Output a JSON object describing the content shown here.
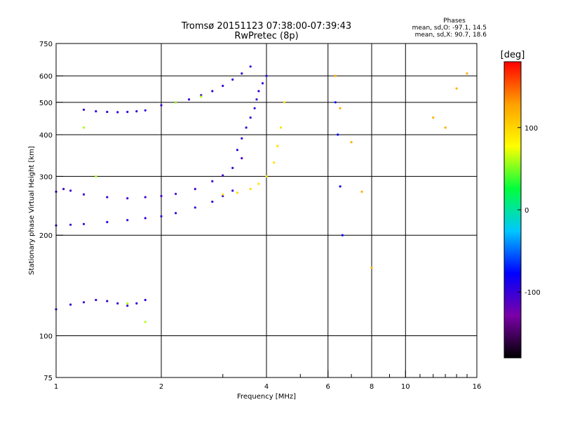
{
  "title": "Tromsø 20151123 07:38:00-07:39:43",
  "subtitle": "RwPretec (8p)",
  "stats": {
    "heading": "Phases",
    "line_o": "mean, sd,O: -97.1, 14.5",
    "line_x": "mean, sd,X:  90.7, 18.6"
  },
  "chart_data": {
    "type": "scatter",
    "xlabel": "Frequency [MHz]",
    "ylabel": "Stationary phase Virtual Height [km]",
    "xscale": "log",
    "yscale": "log",
    "xlim": [
      1,
      16
    ],
    "ylim": [
      75,
      750
    ],
    "x_ticks": [
      1,
      2,
      4,
      6,
      8,
      10,
      16
    ],
    "x_minor_ticks": [
      3,
      5,
      7,
      9,
      11,
      12,
      13,
      14,
      15
    ],
    "x_tick_labels": [
      "1",
      "2",
      "4",
      "6",
      "8",
      "10",
      "16"
    ],
    "y_ticks": [
      75,
      100,
      200,
      300,
      400,
      500,
      600,
      750
    ],
    "y_tick_labels": [
      "75",
      "100",
      "200",
      "300",
      "400",
      "500",
      "600",
      "750"
    ],
    "grid": true,
    "colorbar": {
      "label": "[deg]",
      "range": [
        -180,
        180
      ],
      "ticks": [
        100,
        0,
        -100
      ],
      "tick_labels": [
        "100",
        "0",
        "-100"
      ],
      "colors": [
        "#000000",
        "#7a00a8",
        "#0000ff",
        "#00c8ff",
        "#00ff3c",
        "#ffff00",
        "#ffa000",
        "#ff0000"
      ]
    },
    "series": [
      {
        "x": [
          1.0,
          1.1,
          1.2,
          1.4,
          1.6,
          1.8,
          2.0,
          2.2,
          2.5,
          2.8,
          3.0,
          3.2
        ],
        "y": [
          214,
          215,
          216,
          219,
          222,
          225,
          228,
          233,
          242,
          252,
          262,
          272
        ],
        "phase": -100
      },
      {
        "x": [
          1.0,
          1.05,
          1.1,
          1.2,
          1.4,
          1.6,
          1.8,
          2.0,
          2.2,
          2.5,
          2.8,
          3.0,
          3.2,
          3.4
        ],
        "y": [
          270,
          275,
          272,
          265,
          260,
          258,
          260,
          262,
          266,
          275,
          290,
          302,
          318,
          340
        ],
        "phase": -105
      },
      {
        "x": [
          3.3,
          3.4,
          3.5,
          3.6,
          3.7,
          3.75,
          3.8,
          3.9,
          4.0
        ],
        "y": [
          360,
          390,
          420,
          450,
          480,
          510,
          540,
          570,
          600
        ],
        "phase": -100
      },
      {
        "x": [
          1.2,
          1.3,
          1.4,
          1.5,
          1.6,
          1.7,
          1.8
        ],
        "y": [
          475,
          470,
          468,
          467,
          468,
          470,
          473
        ],
        "phase": -100
      },
      {
        "x": [
          2.0,
          2.2,
          2.4,
          2.6,
          2.8,
          3.0,
          3.2,
          3.4,
          3.6
        ],
        "y": [
          490,
          500,
          510,
          525,
          540,
          560,
          585,
          610,
          640
        ],
        "phase": -100
      },
      {
        "x": [
          1.0,
          1.1,
          1.2,
          1.3,
          1.4,
          1.5,
          1.6,
          1.7,
          1.8
        ],
        "y": [
          120,
          124,
          126,
          128,
          127,
          125,
          123,
          125,
          128
        ],
        "phase": -100
      },
      {
        "x": [
          3.0,
          3.3,
          3.6,
          3.8,
          4.0,
          4.2,
          4.3,
          4.4,
          4.5
        ],
        "y": [
          265,
          268,
          275,
          285,
          300,
          330,
          370,
          420,
          500
        ],
        "phase": 95
      },
      {
        "x": [
          1.2,
          1.3,
          1.6,
          1.8,
          2.2,
          2.6
        ],
        "y": [
          420,
          300,
          125,
          110,
          500,
          520
        ],
        "phase": 60
      },
      {
        "x": [
          6.3,
          6.5,
          7.0,
          7.5,
          8.0,
          12.0,
          13.0,
          14.0,
          15.0
        ],
        "y": [
          600,
          480,
          380,
          270,
          160,
          450,
          420,
          550,
          610
        ],
        "phase": 120
      },
      {
        "x": [
          6.3,
          6.4,
          6.5,
          6.6
        ],
        "y": [
          500,
          400,
          280,
          200
        ],
        "phase": -80
      }
    ]
  }
}
